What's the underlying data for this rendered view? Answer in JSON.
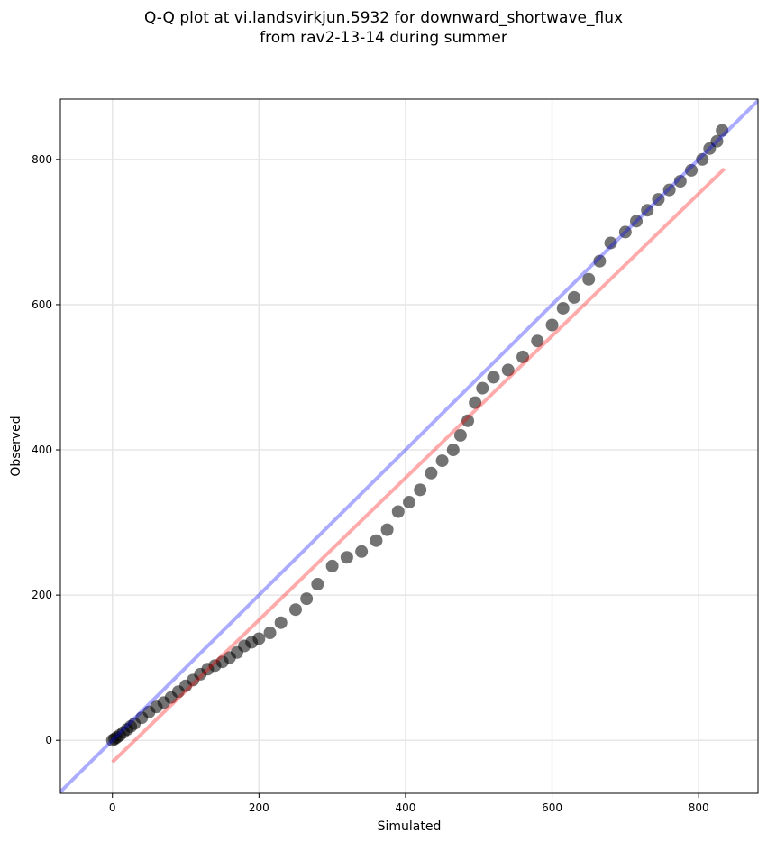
{
  "chart_data": {
    "type": "scatter",
    "title_line1": "Q-Q plot at vi.landsvirkjun.5932 for downward_shortwave_flux",
    "title_line2": "from rav2-13-14 during summer",
    "xlabel": "Simulated",
    "ylabel": "Observed",
    "xlim": [
      -71,
      881
    ],
    "ylim": [
      -73,
      883
    ],
    "xticks": [
      0,
      200,
      400,
      600,
      800
    ],
    "yticks": [
      0,
      200,
      400,
      600,
      800
    ],
    "grid": true,
    "points": [
      [
        0,
        0
      ],
      [
        3,
        2
      ],
      [
        6,
        4
      ],
      [
        10,
        7
      ],
      [
        15,
        11
      ],
      [
        20,
        15
      ],
      [
        25,
        19
      ],
      [
        30,
        23
      ],
      [
        40,
        31
      ],
      [
        50,
        39
      ],
      [
        60,
        46
      ],
      [
        70,
        52
      ],
      [
        80,
        59
      ],
      [
        90,
        67
      ],
      [
        100,
        75
      ],
      [
        110,
        83
      ],
      [
        120,
        91
      ],
      [
        130,
        98
      ],
      [
        140,
        103
      ],
      [
        150,
        108
      ],
      [
        160,
        114
      ],
      [
        170,
        121
      ],
      [
        180,
        130
      ],
      [
        190,
        135
      ],
      [
        200,
        140
      ],
      [
        215,
        148
      ],
      [
        230,
        162
      ],
      [
        250,
        180
      ],
      [
        265,
        195
      ],
      [
        280,
        215
      ],
      [
        300,
        240
      ],
      [
        320,
        252
      ],
      [
        340,
        260
      ],
      [
        360,
        275
      ],
      [
        375,
        290
      ],
      [
        390,
        315
      ],
      [
        405,
        328
      ],
      [
        420,
        345
      ],
      [
        435,
        368
      ],
      [
        450,
        385
      ],
      [
        465,
        400
      ],
      [
        475,
        420
      ],
      [
        485,
        440
      ],
      [
        495,
        465
      ],
      [
        505,
        485
      ],
      [
        520,
        500
      ],
      [
        540,
        510
      ],
      [
        560,
        528
      ],
      [
        580,
        550
      ],
      [
        600,
        572
      ],
      [
        615,
        595
      ],
      [
        630,
        610
      ],
      [
        650,
        635
      ],
      [
        665,
        660
      ],
      [
        680,
        685
      ],
      [
        700,
        700
      ],
      [
        715,
        715
      ],
      [
        730,
        730
      ],
      [
        745,
        745
      ],
      [
        760,
        758
      ],
      [
        775,
        770
      ],
      [
        790,
        785
      ],
      [
        805,
        800
      ],
      [
        815,
        815
      ],
      [
        825,
        825
      ],
      [
        832,
        840
      ]
    ],
    "point_color": "#000000",
    "identity_line": {
      "color": "#0000ff",
      "slope": 1,
      "intercept": 0
    },
    "fit_line": {
      "color": "#ff0000",
      "x": [
        0,
        835
      ],
      "y": [
        -30,
        787
      ]
    }
  }
}
